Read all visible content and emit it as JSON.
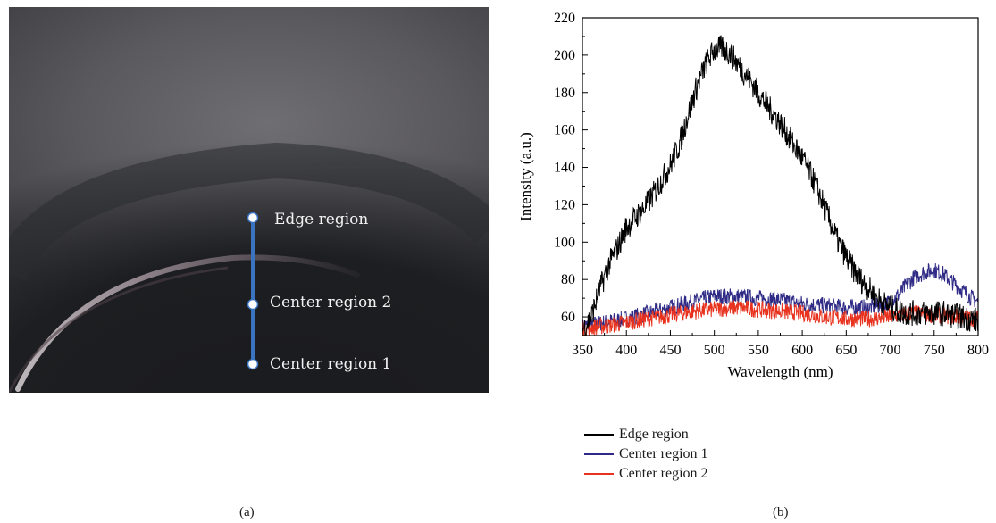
{
  "photo": {
    "labels": {
      "edge": "Edge region",
      "center2": "Center region 2",
      "center1": "Center region 1"
    },
    "marker_color": "#3a74c0"
  },
  "captions": {
    "a": "(a)",
    "b": "(b)"
  },
  "chart_data": {
    "type": "line",
    "xlabel": "Wavelength (nm)",
    "ylabel": "Intensity (a.u.)",
    "xlim": [
      350,
      800
    ],
    "ylim": [
      50,
      220
    ],
    "xticks": [
      350,
      400,
      450,
      500,
      550,
      600,
      650,
      700,
      750,
      800
    ],
    "yticks": [
      60,
      80,
      100,
      120,
      140,
      160,
      180,
      200,
      220
    ],
    "grid": false,
    "legend_position": "bottom",
    "series": [
      {
        "name": "Edge region",
        "color": "#000000",
        "x": [
          350,
          360,
          370,
          380,
          390,
          400,
          410,
          420,
          430,
          440,
          450,
          460,
          470,
          480,
          490,
          500,
          510,
          520,
          530,
          540,
          550,
          560,
          570,
          580,
          590,
          600,
          610,
          620,
          630,
          640,
          650,
          660,
          670,
          680,
          690,
          700,
          710,
          720,
          730,
          740,
          750,
          760,
          770,
          780,
          790,
          800
        ],
        "values": [
          53,
          60,
          75,
          88,
          97,
          108,
          113,
          118,
          125,
          133,
          141,
          152,
          168,
          183,
          195,
          203,
          204,
          200,
          193,
          187,
          180,
          173,
          167,
          160,
          152,
          145,
          136,
          125,
          113,
          101,
          92,
          84,
          78,
          73,
          68,
          65,
          63,
          62,
          62,
          62,
          62,
          62,
          61,
          60,
          59,
          58
        ]
      },
      {
        "name": "Center region 1",
        "color": "#2e2a85",
        "x": [
          350,
          375,
          400,
          425,
          450,
          475,
          500,
          525,
          550,
          575,
          600,
          625,
          650,
          675,
          690,
          700,
          710,
          720,
          730,
          740,
          750,
          760,
          770,
          780,
          790,
          800
        ],
        "values": [
          55,
          57,
          59,
          62,
          65,
          68,
          71,
          71,
          70,
          69,
          67,
          66,
          65,
          65,
          66,
          68,
          72,
          78,
          82,
          84,
          85,
          83,
          79,
          75,
          71,
          68
        ]
      },
      {
        "name": "Center region 2",
        "color": "#e8321e",
        "x": [
          350,
          375,
          400,
          425,
          450,
          475,
          500,
          525,
          550,
          575,
          600,
          625,
          650,
          675,
          700,
          725,
          750,
          775,
          800
        ],
        "values": [
          54,
          55,
          57,
          59,
          61,
          63,
          64,
          65,
          64,
          63,
          62,
          60,
          59,
          59,
          60,
          62,
          61,
          60,
          59
        ]
      }
    ]
  }
}
